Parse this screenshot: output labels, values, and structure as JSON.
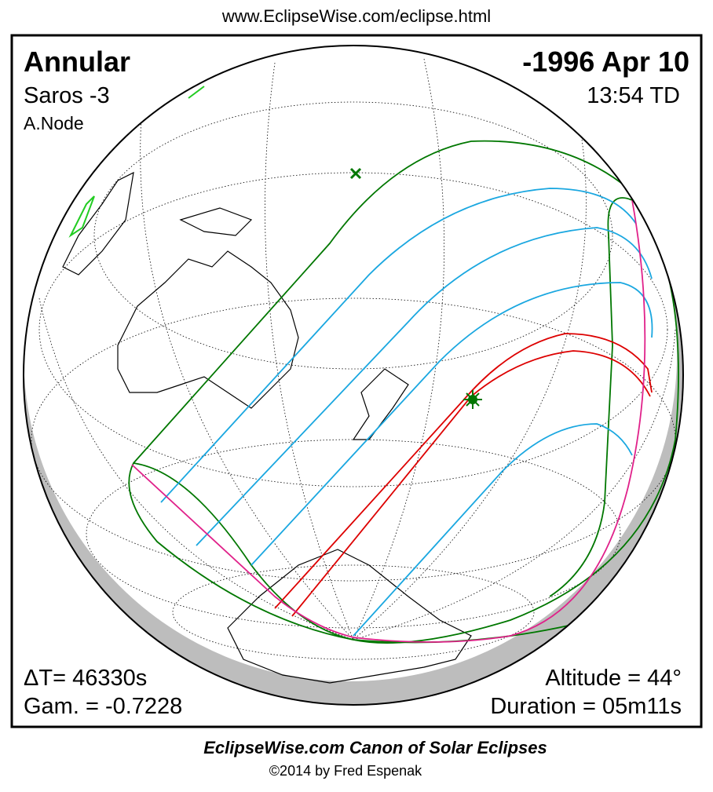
{
  "header": {
    "url": "www.EclipseWise.com/eclipse.html",
    "type": "Annular",
    "date": "-1996 Apr 10",
    "saros": "Saros  -3",
    "time": "13:54 TD",
    "node": "A.Node"
  },
  "stats": {
    "delta_t": "ΔT=  46330s",
    "gamma": "Gam. = -0.7228",
    "altitude": "Altitude = 44°",
    "duration": "Duration = 05m11s"
  },
  "footer": {
    "title": "EclipseWise.com Canon of Solar Eclipses",
    "copyright": "©2014 by Fred Espenak"
  }
}
